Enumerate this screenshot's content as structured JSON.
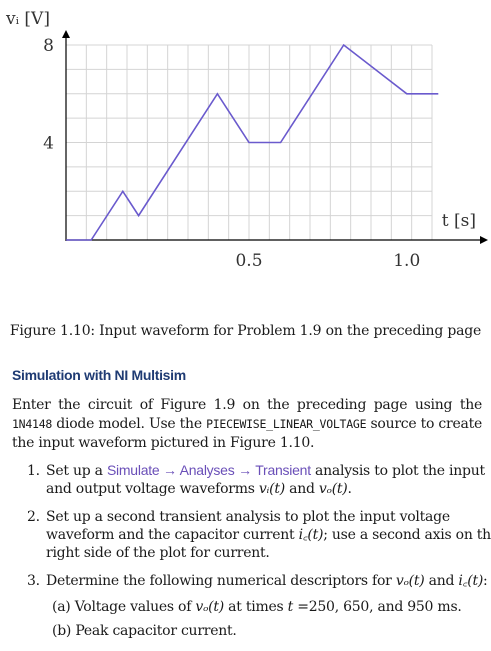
{
  "chart_data": {
    "type": "line",
    "ylabel": "vᵢ [V]",
    "xlabel": "t [s]",
    "xlim": [
      -0.08,
      1.08
    ],
    "ylim": [
      0,
      8
    ],
    "xticks": [
      0.5,
      1.0
    ],
    "xtick_labels": [
      "0.5",
      "1.0"
    ],
    "yticks": [
      4,
      8
    ],
    "ytick_labels": [
      "4",
      "8"
    ],
    "grid": true,
    "series": [
      {
        "x": [
          -0.08,
          0.0,
          0.1,
          0.15,
          0.4,
          0.5,
          0.6,
          0.8,
          1.0,
          1.1
        ],
        "y": [
          0,
          0,
          2,
          1,
          6,
          4,
          4,
          8,
          6,
          6
        ],
        "color": "#6a5acd"
      }
    ]
  },
  "figure": {
    "caption": "Figure 1.10: Input waveform for Problem 1.9 on the preceding page"
  },
  "section": {
    "title": "Simulation with NI Multisim"
  },
  "intro": {
    "p1": "Enter the circuit of Figure 1.9 on the preceding page using the ",
    "code1": "1N4148",
    "p2": " diode model. Use the ",
    "code2": "PIECEWISE_LINEAR_VOLTAGE",
    "p3": " source to create the input waveform pictured in Figure 1.10."
  },
  "steps": {
    "s1_a": "Set up a ",
    "s1_link": "Simulate → Analyses → Transient",
    "s1_b": " analysis to plot the input and output voltage waveforms ",
    "s1_vi": "vᵢ(t)",
    "s1_and": " and ",
    "s1_vo": "vₒ(t)",
    "s1_end": ".",
    "s2_a": "Set up a second transient analysis to plot the input voltage waveform and the capacitor current ",
    "s2_ic": "i꜀(t)",
    "s2_b": "; use a second axis on the right side of the plot for current.",
    "s3_a": "Determine the following numerical descriptors for ",
    "s3_vo": "vₒ(t)",
    "s3_and": " and ",
    "s3_ic": "i꜀(t)",
    "s3_end": ":",
    "sub_a_label": "(a)",
    "sub_a_1": " Voltage values of ",
    "sub_a_vo": "vₒ(t)",
    "sub_a_2": " at times ",
    "sub_a_t": "t",
    "sub_a_3": " =250, 650, and 950 ms.",
    "sub_b_label": "(b)",
    "sub_b_text": " Peak capacitor current."
  }
}
